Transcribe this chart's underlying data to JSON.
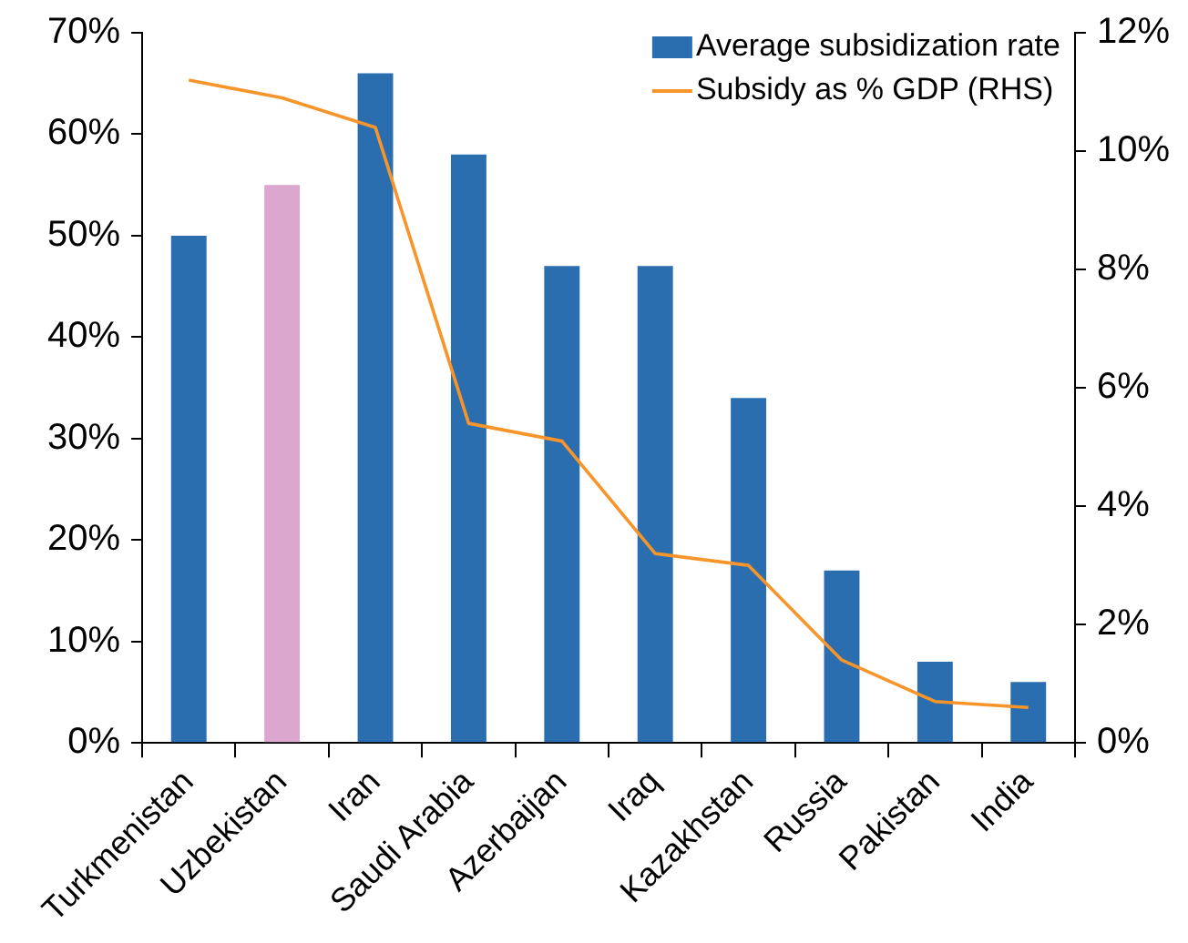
{
  "chart_data": {
    "type": "bar",
    "categories": [
      "Turkmenistan",
      "Uzbekistan",
      "Iran",
      "Saudi Arabia",
      "Azerbaijan",
      "Iraq",
      "Kazakhstan",
      "Russia",
      "Pakistan",
      "India"
    ],
    "series": [
      {
        "name": "Average subsidization rate",
        "color": "#2a6eb0",
        "colors": [
          "#2a6eb0",
          "#dba7cf",
          "#2a6eb0",
          "#2a6eb0",
          "#2a6eb0",
          "#2a6eb0",
          "#2a6eb0",
          "#2a6eb0",
          "#2a6eb0",
          "#2a6eb0"
        ],
        "values": [
          50,
          55,
          66,
          58,
          47,
          47,
          34,
          17,
          8,
          6
        ]
      },
      {
        "name": "Subsidy as % GDP (RHS)",
        "type": "line",
        "axis": "y2",
        "color": "#f7952a",
        "values": [
          11.2,
          10.9,
          10.4,
          5.4,
          5.1,
          3.2,
          3.0,
          1.4,
          0.7,
          0.6
        ]
      }
    ],
    "ylim": [
      0,
      70
    ],
    "yticks": [
      {
        "value": 0,
        "label": "0%"
      },
      {
        "value": 10,
        "label": "10%"
      },
      {
        "value": 20,
        "label": "20%"
      },
      {
        "value": 30,
        "label": "30%"
      },
      {
        "value": 40,
        "label": "40%"
      },
      {
        "value": 50,
        "label": "50%"
      },
      {
        "value": 60,
        "label": "60%"
      },
      {
        "value": 70,
        "label": "70%"
      }
    ],
    "y2lim": [
      0,
      12
    ],
    "y2ticks": [
      {
        "value": 0,
        "label": "0%"
      },
      {
        "value": 2,
        "label": "2%"
      },
      {
        "value": 4,
        "label": "4%"
      },
      {
        "value": 6,
        "label": "6%"
      },
      {
        "value": 8,
        "label": "8%"
      },
      {
        "value": 10,
        "label": "10%"
      },
      {
        "value": 12,
        "label": "12%"
      }
    ],
    "grid": false,
    "legend": "top right",
    "marker": "none",
    "line_style": "solid"
  }
}
